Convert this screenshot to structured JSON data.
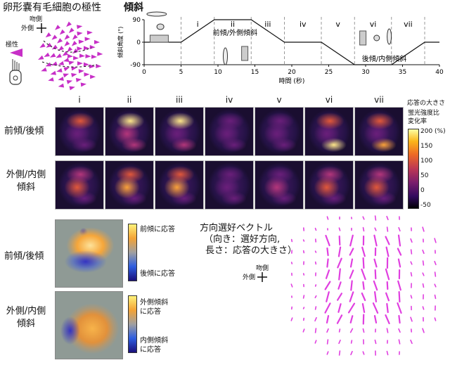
{
  "left_title": "卵形嚢有毛細胞の極性",
  "compass": {
    "rostral": "吻側",
    "lateral": "外側"
  },
  "polarity_label": "極性",
  "right_title": "傾斜",
  "tilt_chart": {
    "ylabel": "傾斜角度 (°)",
    "xlabel": "時間 (秒)",
    "yticks": [
      "90",
      "0",
      "-90"
    ],
    "xticks": [
      "0",
      "5",
      "10",
      "15",
      "20",
      "25",
      "30",
      "35",
      "40"
    ],
    "epochs": [
      "i",
      "ii",
      "iii",
      "iv",
      "v",
      "vi",
      "vii"
    ],
    "label_pitch_lateral": "前傾/外側傾斜",
    "label_back_medial": "後傾/内側傾斜"
  },
  "chart_data": {
    "type": "line",
    "xlabel": "時間 (秒)",
    "ylabel": "傾斜角度 (°)",
    "xlim": [
      0,
      40
    ],
    "ylim": [
      -90,
      90
    ],
    "x": [
      0,
      5,
      9.5,
      14.5,
      19,
      24,
      28.5,
      33.5,
      38,
      40
    ],
    "y": [
      0,
      0,
      90,
      90,
      0,
      0,
      -90,
      -90,
      0,
      0
    ],
    "epoch_boundaries": [
      5,
      9.5,
      14.5,
      19,
      24,
      28.5,
      33.5,
      38
    ]
  },
  "column_labels": [
    "i",
    "ii",
    "iii",
    "iv",
    "v",
    "vi",
    "vii"
  ],
  "row_labels": {
    "pitch": "前傾/後傾",
    "roll": "外側/内側\n傾斜"
  },
  "colorbar": {
    "title1": "応答の大きさ",
    "title2": "蛍光強度比",
    "title3": "変化率",
    "ticks": [
      "200 (%)",
      "150",
      "100",
      "50",
      "0",
      "-50"
    ]
  },
  "bottom": {
    "pitch_label": "前傾/後傾",
    "roll_label": "外側/内側\n傾斜",
    "pitch_high": "前傾に応答",
    "pitch_low": "後傾に応答",
    "roll_high": "外側傾斜\nに応答",
    "roll_low": "内側傾斜\nに応答"
  },
  "vector_legend": {
    "title": "方向選好ベクトル",
    "line2": "（向き：選好方向,",
    "line3": "長さ：応答の大きさ）"
  },
  "colors": {
    "magenta": "#c72fc7",
    "accent_pink": "#e040e0"
  }
}
